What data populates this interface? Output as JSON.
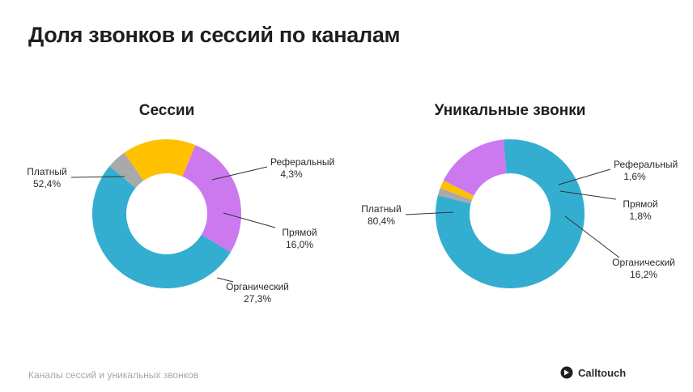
{
  "page_title": "Доля звонков и сессий по каналам",
  "footer_caption": "Каналы сессий и уникальных звонков",
  "brand": {
    "name": "Calltouch",
    "icon": "calltouch-logo-icon"
  },
  "colors": {
    "Платный": "#33aed0",
    "Реферальный": "#a9a9a9",
    "Прямой": "#ffc000",
    "Органический": "#cc79f0"
  },
  "chart_data": [
    {
      "type": "pie",
      "donut": true,
      "title": "Сессии",
      "slices": [
        {
          "label": "Реферальный",
          "value": 4.3,
          "display": "4,3%"
        },
        {
          "label": "Прямой",
          "value": 16.0,
          "display": "16,0%"
        },
        {
          "label": "Органический",
          "value": 27.3,
          "display": "27,3%"
        },
        {
          "label": "Платный",
          "value": 52.4,
          "display": "52,4%"
        }
      ]
    },
    {
      "type": "pie",
      "donut": true,
      "title": "Уникальные звонки",
      "slices": [
        {
          "label": "Реферальный",
          "value": 1.6,
          "display": "1,6%"
        },
        {
          "label": "Прямой",
          "value": 1.8,
          "display": "1,8%"
        },
        {
          "label": "Органический",
          "value": 16.2,
          "display": "16,2%"
        },
        {
          "label": "Платный",
          "value": 80.4,
          "display": "80,4%"
        }
      ]
    }
  ]
}
